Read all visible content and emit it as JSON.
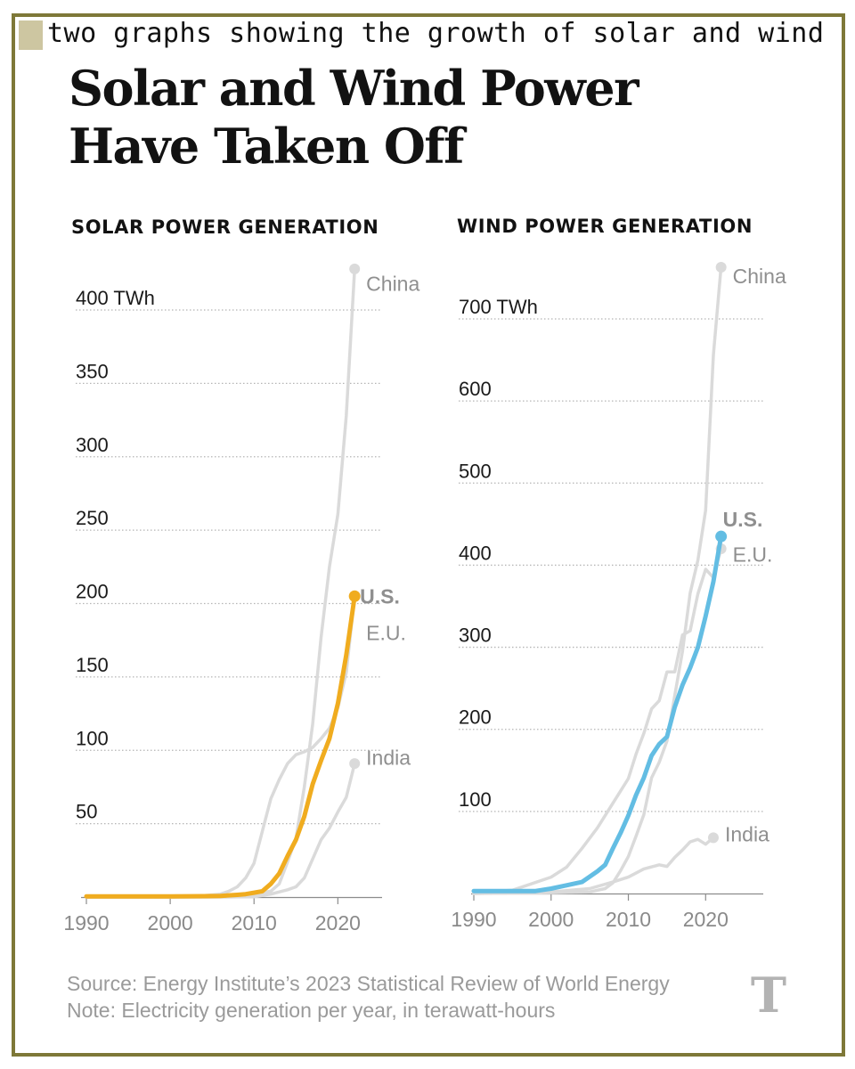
{
  "caption": "two graphs showing the growth of solar and wind power",
  "headline": "Solar and Wind Power Have Taken Off",
  "footer": {
    "source": "Source: Energy Institute’s 2023 Statistical Review of World Energy",
    "note": "Note: Electricity generation per year, in terawatt-hours"
  },
  "logo": "T",
  "colors": {
    "solar_us": "#f0ac1f",
    "wind_us": "#63bde3",
    "other": "#dadada",
    "grid": "#b5b5b5",
    "axis": "#8c8c8c"
  },
  "chart_data": [
    {
      "type": "line",
      "title": "SOLAR POWER GENERATION",
      "xlim": [
        1990,
        2024
      ],
      "ylim": [
        0,
        400
      ],
      "x_ticks": [
        1990,
        2000,
        2010,
        2020
      ],
      "y_ticks": [
        50,
        100,
        150,
        200,
        250,
        300,
        350,
        400
      ],
      "y_tick_labels": [
        "50",
        "100",
        "150",
        "200",
        "250",
        "300",
        "350",
        "400 TWh"
      ],
      "grid": true,
      "series": [
        {
          "name": "China",
          "color": "#dadada",
          "highlight": false,
          "x": [
            1990,
            2000,
            2005,
            2008,
            2010,
            2011,
            2012,
            2013,
            2014,
            2015,
            2016,
            2017,
            2018,
            2019,
            2020,
            2021,
            2022
          ],
          "values": [
            0,
            0,
            0,
            0.2,
            1,
            3,
            4,
            9,
            24,
            40,
            75,
            118,
            177,
            225,
            261,
            328,
            428
          ]
        },
        {
          "name": "E.U.",
          "color": "#dadada",
          "highlight": false,
          "x": [
            1990,
            2000,
            2004,
            2006,
            2007,
            2008,
            2009,
            2010,
            2011,
            2012,
            2013,
            2014,
            2015,
            2016,
            2017,
            2018,
            2019,
            2020,
            2021,
            2022
          ],
          "values": [
            0,
            0,
            1,
            2,
            4,
            7,
            13,
            23,
            45,
            67,
            80,
            91,
            97,
            99,
            102,
            108,
            115,
            129,
            153,
            205
          ]
        },
        {
          "name": "India",
          "color": "#dadada",
          "highlight": false,
          "x": [
            1990,
            2010,
            2012,
            2014,
            2015,
            2016,
            2017,
            2018,
            2019,
            2020,
            2021,
            2022
          ],
          "values": [
            0,
            0.1,
            2,
            5,
            7,
            13,
            26,
            39,
            47,
            58,
            68,
            91
          ]
        },
        {
          "name": "U.S.",
          "color": "#f0ac1f",
          "highlight": true,
          "x": [
            1990,
            2000,
            2004,
            2006,
            2008,
            2009,
            2010,
            2011,
            2012,
            2013,
            2014,
            2015,
            2016,
            2017,
            2018,
            2019,
            2020,
            2021,
            2022
          ],
          "values": [
            0.5,
            0.5,
            0.6,
            0.8,
            1.5,
            2,
            3,
            4,
            9,
            16,
            28,
            39,
            55,
            77,
            93,
            108,
            132,
            165,
            205
          ]
        }
      ],
      "end_labels": [
        {
          "name": "China",
          "y": 418
        },
        {
          "name": "U.S.",
          "y": 205
        },
        {
          "name": "E.U.",
          "y": 180
        },
        {
          "name": "India",
          "y": 95
        }
      ]
    },
    {
      "type": "line",
      "title": "WIND POWER GENERATION",
      "xlim": [
        1990,
        2024
      ],
      "ylim": [
        0,
        700
      ],
      "x_ticks": [
        1990,
        2000,
        2010,
        2020
      ],
      "y_ticks": [
        100,
        200,
        300,
        400,
        500,
        600,
        700
      ],
      "y_tick_labels": [
        "100",
        "200",
        "300",
        "400",
        "500",
        "600",
        "700 TWh"
      ],
      "grid": true,
      "series": [
        {
          "name": "China",
          "color": "#dadada",
          "highlight": false,
          "x": [
            1990,
            2000,
            2005,
            2006,
            2007,
            2008,
            2009,
            2010,
            2011,
            2012,
            2013,
            2014,
            2015,
            2016,
            2017,
            2018,
            2019,
            2020,
            2021,
            2022
          ],
          "values": [
            0,
            1,
            2,
            4,
            6,
            13,
            28,
            45,
            70,
            96,
            141,
            160,
            186,
            241,
            295,
            366,
            406,
            467,
            656,
            763
          ]
        },
        {
          "name": "E.U.",
          "color": "#dadada",
          "highlight": false,
          "x": [
            1990,
            1995,
            2000,
            2002,
            2004,
            2006,
            2008,
            2010,
            2011,
            2012,
            2013,
            2014,
            2015,
            2016,
            2017,
            2018,
            2019,
            2020,
            2021,
            2022
          ],
          "values": [
            1,
            4,
            20,
            32,
            55,
            80,
            110,
            140,
            170,
            195,
            225,
            235,
            270,
            270,
            315,
            320,
            365,
            395,
            385,
            420
          ]
        },
        {
          "name": "India",
          "color": "#dadada",
          "highlight": false,
          "x": [
            1990,
            2000,
            2005,
            2008,
            2010,
            2012,
            2014,
            2015,
            2016,
            2017,
            2018,
            2019,
            2020,
            2021
          ],
          "values": [
            0,
            2,
            6,
            14,
            20,
            30,
            35,
            33,
            44,
            53,
            63,
            66,
            60,
            68
          ]
        },
        {
          "name": "U.S.",
          "color": "#63bde3",
          "highlight": true,
          "x": [
            1990,
            1995,
            1998,
            2000,
            2002,
            2004,
            2006,
            2007,
            2008,
            2009,
            2010,
            2011,
            2012,
            2013,
            2014,
            2015,
            2016,
            2017,
            2018,
            2019,
            2020,
            2021,
            2022
          ],
          "values": [
            3,
            3,
            3,
            6,
            10,
            14,
            27,
            35,
            55,
            74,
            95,
            120,
            141,
            168,
            182,
            191,
            227,
            254,
            275,
            300,
            338,
            380,
            435
          ]
        }
      ],
      "end_labels": [
        {
          "name": "China",
          "y": 752
        },
        {
          "name": "U.S.",
          "y": 456
        },
        {
          "name": "E.U.",
          "y": 413
        },
        {
          "name": "India",
          "y": 72
        }
      ]
    }
  ]
}
